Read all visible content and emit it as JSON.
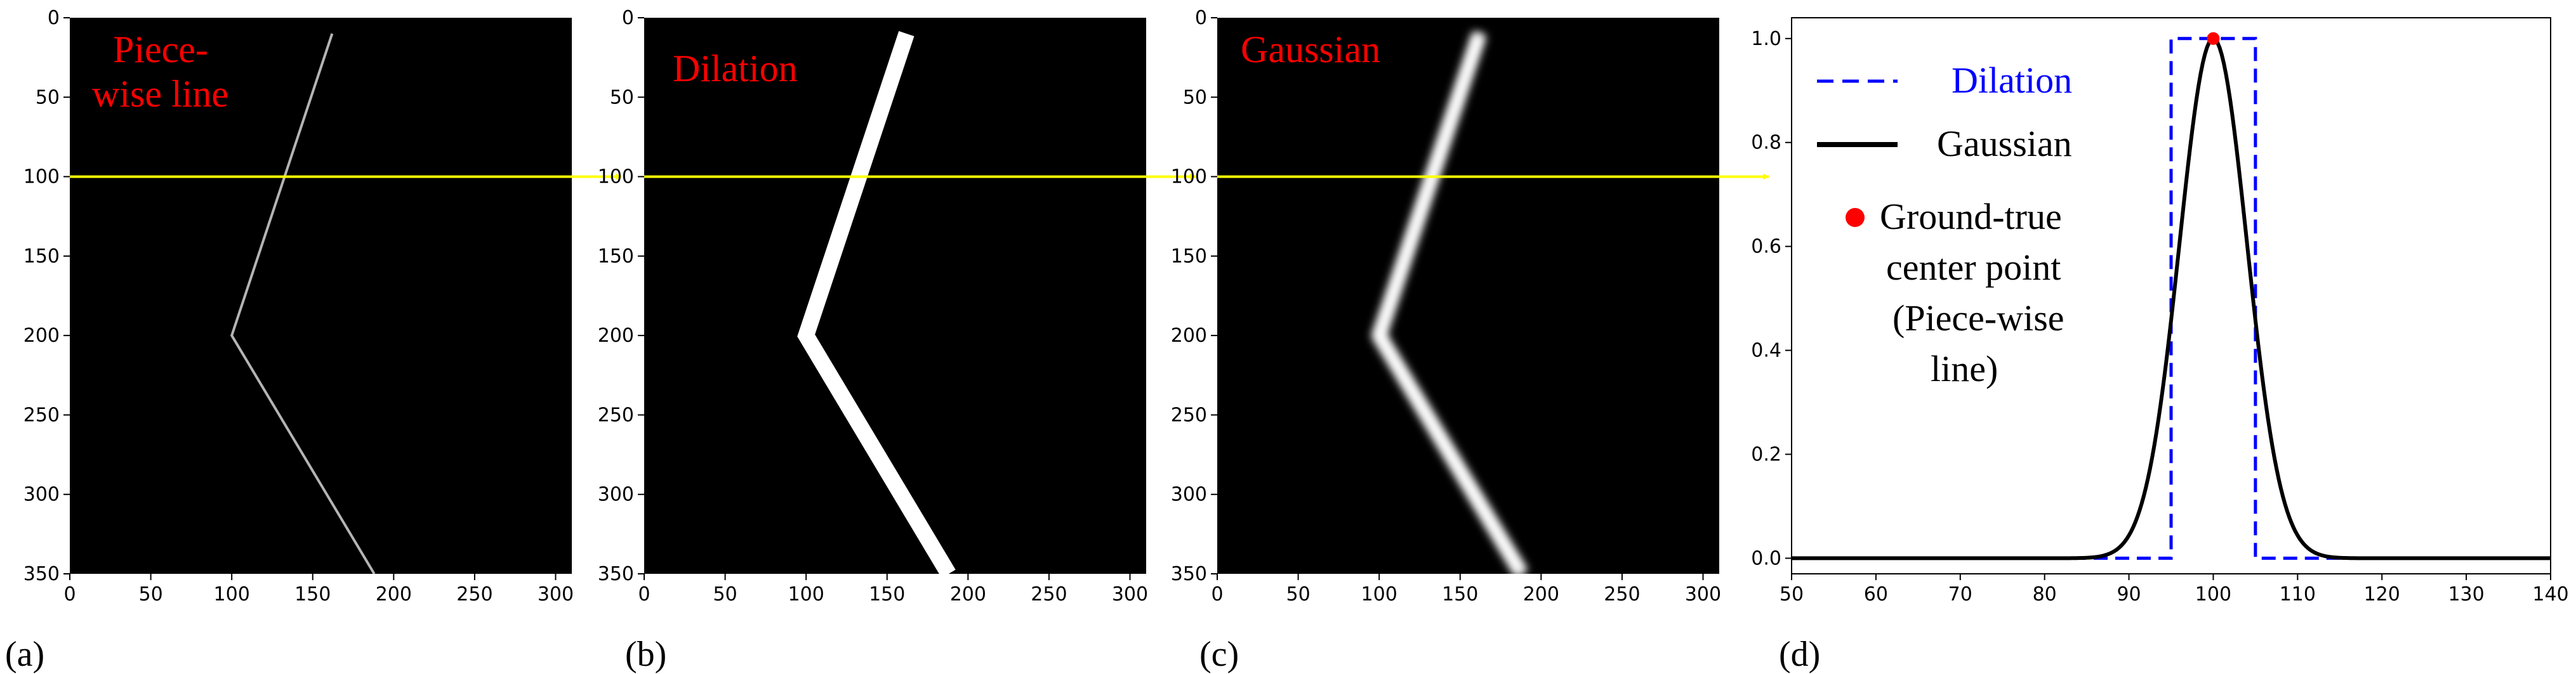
{
  "figure": {
    "panel_tags": [
      "(a)",
      "(b)",
      "(c)",
      "(d)"
    ],
    "colors": {
      "background": "#000000",
      "overlay_title": "#ff0000",
      "arrow": "#ffff00",
      "dilation": "#0000ff",
      "gaussian": "#000000",
      "center_point": "#ff0000"
    }
  },
  "chart_data": [
    {
      "type": "image",
      "panel": "(a)",
      "overlay_title_lines": [
        "Piece-",
        "wise line"
      ],
      "xticks": [
        0,
        50,
        100,
        150,
        200,
        250,
        300
      ],
      "yticks": [
        0,
        50,
        100,
        150,
        200,
        250,
        300,
        350
      ],
      "xlim": [
        0,
        310
      ],
      "ylim": [
        350,
        0
      ],
      "polyline": [
        [
          162,
          10
        ],
        [
          100,
          200
        ],
        [
          188,
          350
        ]
      ],
      "style": "thin-gray-line",
      "arrow_y": 100
    },
    {
      "type": "image",
      "panel": "(b)",
      "overlay_title_lines": [
        "Dilation"
      ],
      "xticks": [
        0,
        50,
        100,
        150,
        200,
        250,
        300
      ],
      "yticks": [
        0,
        50,
        100,
        150,
        200,
        250,
        300,
        350
      ],
      "xlim": [
        0,
        310
      ],
      "ylim": [
        350,
        0
      ],
      "polyline": [
        [
          162,
          10
        ],
        [
          100,
          200
        ],
        [
          188,
          350
        ]
      ],
      "style": "thick-white-band",
      "band_width": 10,
      "arrow_y": 100
    },
    {
      "type": "image",
      "panel": "(c)",
      "overlay_title_lines": [
        "Gaussian"
      ],
      "xticks": [
        0,
        50,
        100,
        150,
        200,
        250,
        300
      ],
      "yticks": [
        0,
        50,
        100,
        150,
        200,
        250,
        300,
        350
      ],
      "xlim": [
        0,
        310
      ],
      "ylim": [
        350,
        0
      ],
      "polyline": [
        [
          162,
          10
        ],
        [
          100,
          200
        ],
        [
          188,
          350
        ]
      ],
      "style": "gaussian-blurred-band",
      "arrow_y": 100
    },
    {
      "type": "line",
      "panel": "(d)",
      "xlim": [
        50,
        140
      ],
      "ylim": [
        -0.03,
        1.04
      ],
      "xticks": [
        50,
        60,
        70,
        80,
        90,
        100,
        110,
        120,
        130,
        140
      ],
      "yticks": [
        0.0,
        0.2,
        0.4,
        0.6,
        0.8,
        1.0
      ],
      "ytick_labels": [
        "0.0",
        "0.2",
        "0.4",
        "0.6",
        "0.8",
        "1.0"
      ],
      "grid": false,
      "legend_placement": "upper-left",
      "series": [
        {
          "name": "Dilation",
          "style": "dashed",
          "color": "#0000ff",
          "x": [
            50,
            95,
            95,
            105,
            105,
            140
          ],
          "y": [
            0,
            0,
            1,
            1,
            0,
            0
          ]
        },
        {
          "name": "Gaussian",
          "style": "solid",
          "color": "#000000",
          "function": "gaussian",
          "center": 100,
          "sigma": 4,
          "x_range": [
            50,
            140
          ]
        }
      ],
      "points": [
        {
          "label_lines": [
            "Ground-true",
            "center point",
            "(Piece-wise",
            "line)"
          ],
          "x": 100,
          "y": 1.0,
          "color": "#ff0000"
        }
      ]
    }
  ]
}
